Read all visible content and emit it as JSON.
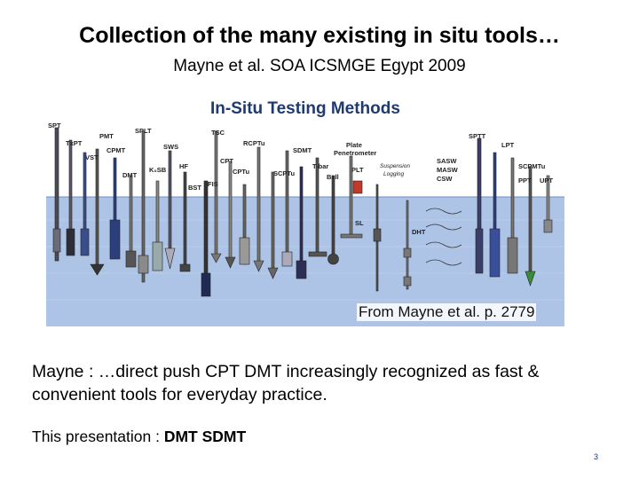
{
  "slide": {
    "title": "Collection of the many existing in situ tools…",
    "subtitle": "Mayne et al. SOA ICSMGE Egypt 2009",
    "body": "Mayne : …direct push CPT  DMT increasingly recognized as fast & convenient tools for everyday practice.",
    "presentation_prefix": "This presentation  :",
    "presentation_value": "DMT  SDMT",
    "page_number": "3"
  },
  "figure": {
    "heading": "In-Situ Testing Methods",
    "credit": "From Mayne et al. p. 2779",
    "colors": {
      "sky": "#ffffff",
      "ground": "#aec4e6",
      "ground_dark": "#93aed6",
      "heading": "#1f3a6e"
    },
    "tool_labels": [
      "SPT",
      "TxPT",
      "PMT",
      "VST",
      "CPMT",
      "DMT",
      "SPLT",
      "K₀SB",
      "SWS",
      "HF",
      "BST",
      "TSC",
      "CPT",
      "FIS",
      "RCPTu",
      "CPTu",
      "SDMT",
      "SCPTu",
      "T-bar",
      "Ball",
      "Plate",
      "Penetrometer",
      "PLT",
      "Suspension",
      "Logging",
      "SASW",
      "MASW",
      "CSW",
      "SL",
      "DHT",
      "SPTT",
      "LPT",
      "SCPMTu",
      "PPT",
      "UPT"
    ]
  }
}
